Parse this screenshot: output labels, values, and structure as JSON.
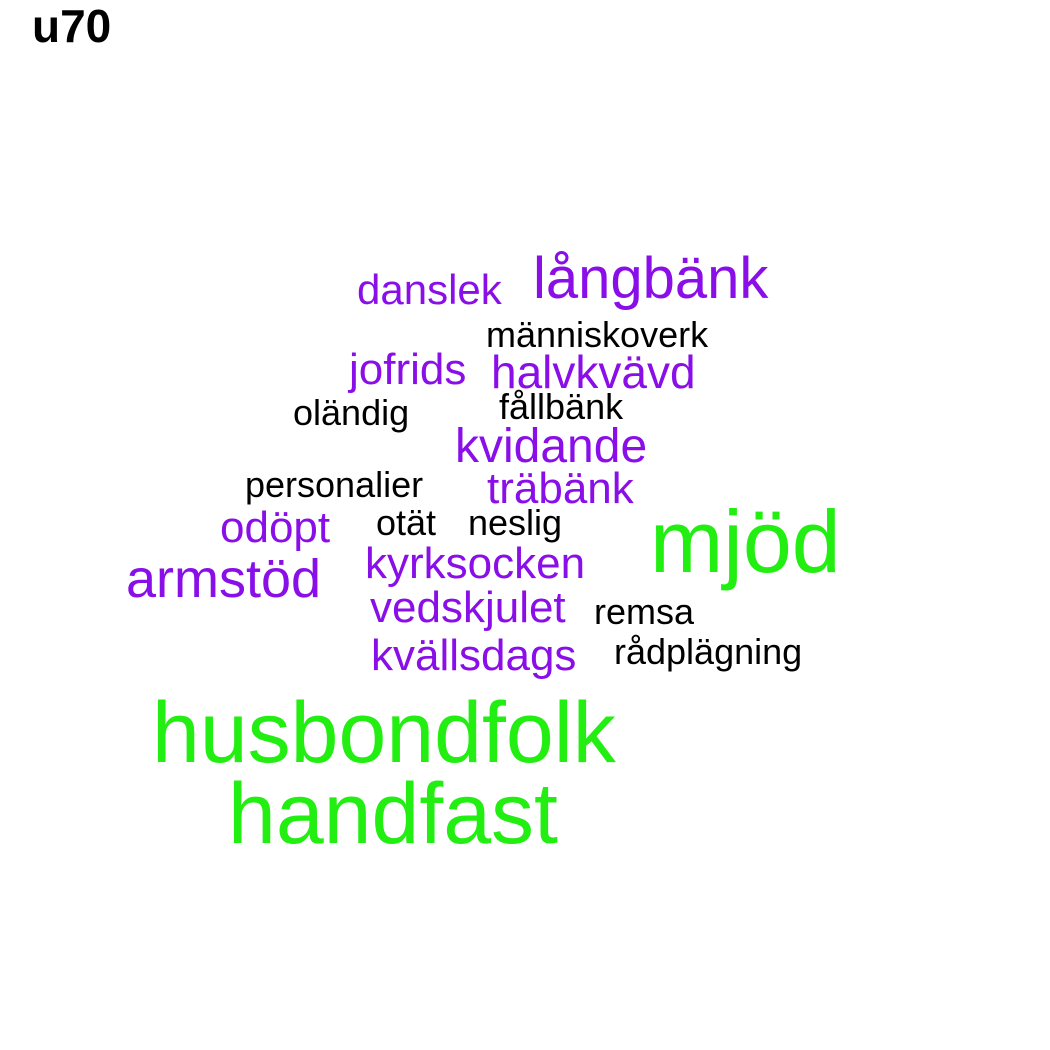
{
  "title": "u70",
  "colors": {
    "high": "#22ee11",
    "mid": "#8a0ee8",
    "low": "#000000"
  },
  "words": [
    {
      "text": "danslek",
      "tier": "mid"
    },
    {
      "text": "långbänk",
      "tier": "mid"
    },
    {
      "text": "människoverk",
      "tier": "low"
    },
    {
      "text": "jofrids",
      "tier": "mid"
    },
    {
      "text": "halvkvävd",
      "tier": "mid"
    },
    {
      "text": "fållbänk",
      "tier": "low"
    },
    {
      "text": "oländig",
      "tier": "low"
    },
    {
      "text": "kvidande",
      "tier": "mid"
    },
    {
      "text": "personalier",
      "tier": "low"
    },
    {
      "text": "träbänk",
      "tier": "mid"
    },
    {
      "text": "odöpt",
      "tier": "mid"
    },
    {
      "text": "otät",
      "tier": "low"
    },
    {
      "text": "neslig",
      "tier": "low"
    },
    {
      "text": "mjöd",
      "tier": "high"
    },
    {
      "text": "kyrksocken",
      "tier": "mid"
    },
    {
      "text": "armstöd",
      "tier": "mid"
    },
    {
      "text": "vedskjulet",
      "tier": "mid"
    },
    {
      "text": "remsa",
      "tier": "low"
    },
    {
      "text": "kvällsdags",
      "tier": "mid"
    },
    {
      "text": "rådplägning",
      "tier": "low"
    },
    {
      "text": "husbondfolk",
      "tier": "high"
    },
    {
      "text": "handfast",
      "tier": "high"
    }
  ]
}
